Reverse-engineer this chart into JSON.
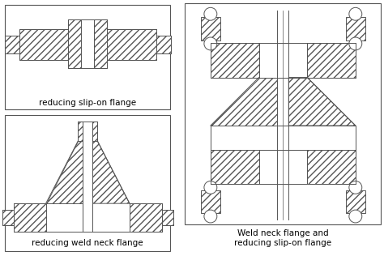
{
  "background_color": "#ffffff",
  "line_color": "#555555",
  "label1": "reducing slip-on flange",
  "label2": "reducing weld neck flange",
  "label3": "Weld neck flange and\nreducing slip-on flange",
  "hatch_pattern": "////",
  "fig_width": 4.74,
  "fig_height": 3.16,
  "dpi": 100
}
